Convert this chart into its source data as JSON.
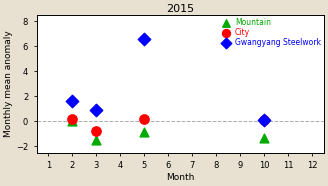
{
  "title": "2015",
  "xlabel": "Month",
  "ylabel": "Monthly mean anomaly",
  "xlim": [
    0.5,
    12.5
  ],
  "ylim": [
    -2.5,
    8.5
  ],
  "xticks": [
    1,
    2,
    3,
    4,
    5,
    6,
    7,
    8,
    9,
    10,
    11,
    12
  ],
  "yticks": [
    -2,
    0,
    2,
    4,
    6,
    8
  ],
  "mountain": {
    "months": [
      2,
      3,
      5,
      10
    ],
    "values": [
      0.05,
      -1.5,
      -0.85,
      -1.3
    ],
    "color": "#00aa00",
    "marker": "^",
    "label": "Mountain",
    "size": 40
  },
  "city": {
    "months": [
      2,
      3,
      5,
      10
    ],
    "values": [
      0.2,
      -0.8,
      0.2,
      0.1
    ],
    "color": "red",
    "marker": "o",
    "label": "City",
    "size": 45
  },
  "gwangyang": {
    "months": [
      2,
      3,
      5,
      10
    ],
    "values": [
      1.6,
      0.95,
      6.6,
      0.1
    ],
    "color": "blue",
    "marker": "D",
    "label": "Gwangyang Steelwork",
    "size": 40
  },
  "hline_y": 0,
  "hline_color": "#aaaaaa",
  "bg_color": "#ffffff",
  "fig_color": "#e8e0d0",
  "title_fontsize": 8,
  "label_fontsize": 6.5,
  "tick_fontsize": 6,
  "legend_fontsize": 5.5
}
